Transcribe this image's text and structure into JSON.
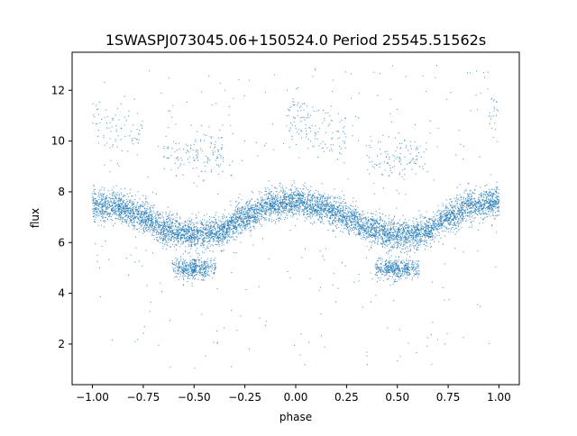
{
  "chart_data": {
    "type": "scatter",
    "title": "1SWASPJ073045.06+150524.0 Period 25545.51562s",
    "xlabel": "phase",
    "ylabel": "flux",
    "xlim": [
      -1.1,
      1.1
    ],
    "ylim": [
      0.4,
      13.5
    ],
    "xticks": [
      "−1.00",
      "−0.75",
      "−0.50",
      "−0.25",
      "0.00",
      "0.25",
      "0.50",
      "0.75",
      "1.00"
    ],
    "xtick_values": [
      -1.0,
      -0.75,
      -0.5,
      -0.25,
      0.0,
      0.25,
      0.5,
      0.75,
      1.0
    ],
    "yticks": [
      "2",
      "4",
      "6",
      "8",
      "10",
      "12"
    ],
    "ytick_values": [
      2,
      4,
      6,
      8,
      10,
      12
    ],
    "grid": false,
    "marker_color": "#1f77b4",
    "series": [
      {
        "description": "phase-folded light curve, main branch",
        "curve": [
          [
            -1.0,
            7.5
          ],
          [
            -0.875,
            7.4
          ],
          [
            -0.75,
            7.0
          ],
          [
            -0.625,
            6.5
          ],
          [
            -0.5,
            6.3
          ],
          [
            -0.375,
            6.4
          ],
          [
            -0.25,
            7.0
          ],
          [
            -0.125,
            7.5
          ],
          [
            0.0,
            7.6
          ],
          [
            0.125,
            7.4
          ],
          [
            0.25,
            7.0
          ],
          [
            0.375,
            6.5
          ],
          [
            0.5,
            6.3
          ],
          [
            0.625,
            6.4
          ],
          [
            0.75,
            7.0
          ],
          [
            0.875,
            7.5
          ],
          [
            1.0,
            7.6
          ]
        ],
        "scatter_sigma": 0.3
      },
      {
        "description": "lower branch near minimum",
        "points": [
          [
            -0.55,
            5.0
          ],
          [
            -0.5,
            4.9
          ],
          [
            -0.45,
            5.0
          ],
          [
            0.45,
            5.0
          ],
          [
            0.5,
            4.9
          ],
          [
            0.55,
            5.0
          ]
        ],
        "scatter_sigma": 0.2
      },
      {
        "description": "upper branch near maximum",
        "points": [
          [
            -1.0,
            11.0
          ],
          [
            -0.9,
            10.5
          ],
          [
            -0.8,
            10.2
          ],
          [
            -0.6,
            9.3
          ],
          [
            -0.5,
            9.4
          ],
          [
            -0.4,
            9.5
          ],
          [
            0.0,
            11.0
          ],
          [
            0.1,
            10.5
          ],
          [
            0.2,
            10.2
          ],
          [
            0.4,
            9.3
          ],
          [
            0.5,
            9.4
          ],
          [
            0.6,
            9.5
          ],
          [
            1.0,
            11.0
          ]
        ],
        "scatter_sigma": 0.5
      },
      {
        "description": "sparse outliers",
        "yrange": [
          1.0,
          13.0
        ]
      }
    ]
  }
}
